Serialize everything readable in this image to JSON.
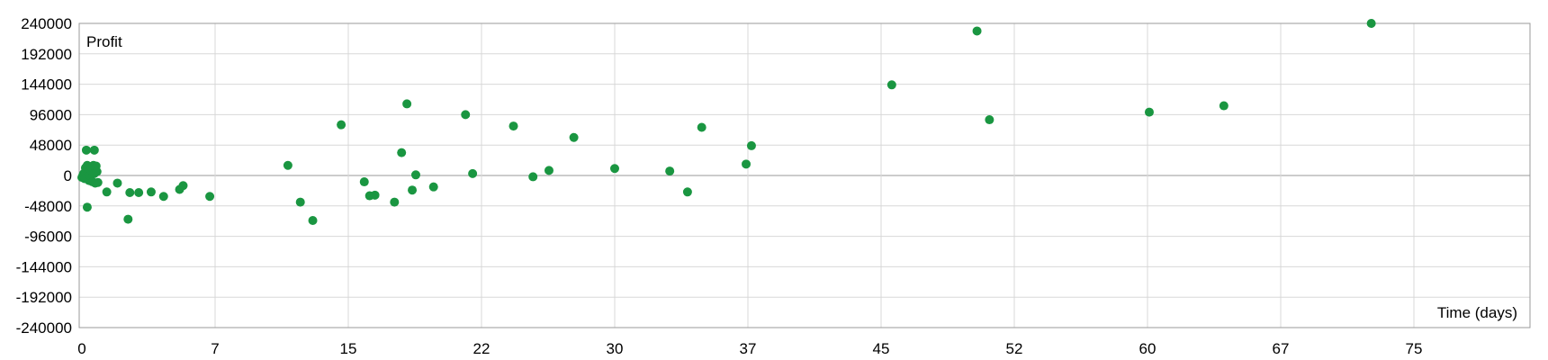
{
  "chart_data": {
    "type": "scatter",
    "title": "",
    "ylabel": "Profit",
    "xlabel": "Time (days)",
    "xlim": [
      0,
      75
    ],
    "ylim": [
      -240000,
      240000
    ],
    "x_ticks": [
      "0",
      "7",
      "15",
      "22",
      "30",
      "37",
      "45",
      "52",
      "60",
      "67",
      "75"
    ],
    "y_ticks": [
      "240000",
      "192000",
      "144000",
      "96000",
      "48000",
      "0",
      "-48000",
      "-96000",
      "-144000",
      "-192000",
      "-240000"
    ],
    "grid": true,
    "legend": "none",
    "marker_color": "#1a9641",
    "series": [
      {
        "points": [
          [
            0.0,
            -3000
          ],
          [
            0.05,
            0
          ],
          [
            0.1,
            3000
          ],
          [
            0.15,
            -5000
          ],
          [
            0.2,
            12000
          ],
          [
            0.25,
            40000
          ],
          [
            0.3,
            -50000
          ],
          [
            0.3,
            16000
          ],
          [
            0.35,
            5000
          ],
          [
            0.4,
            -8000
          ],
          [
            0.45,
            0
          ],
          [
            0.5,
            8000
          ],
          [
            0.55,
            13000
          ],
          [
            0.6,
            -10000
          ],
          [
            0.65,
            16000
          ],
          [
            0.7,
            40000
          ],
          [
            0.7,
            3000
          ],
          [
            0.75,
            -12000
          ],
          [
            0.8,
            15000
          ],
          [
            0.85,
            6000
          ],
          [
            0.9,
            -11000
          ],
          [
            1.4,
            -26000
          ],
          [
            2.0,
            -12000
          ],
          [
            2.6,
            -69000
          ],
          [
            2.7,
            -27000
          ],
          [
            3.2,
            -27000
          ],
          [
            3.9,
            -26000
          ],
          [
            4.6,
            -33000
          ],
          [
            5.5,
            -22000
          ],
          [
            5.7,
            -16000
          ],
          [
            7.2,
            -33000
          ],
          [
            11.6,
            16000
          ],
          [
            12.3,
            -42000
          ],
          [
            13.0,
            -71000
          ],
          [
            14.6,
            80000
          ],
          [
            15.9,
            -10000
          ],
          [
            16.2,
            -32000
          ],
          [
            16.5,
            -31000
          ],
          [
            17.6,
            -42000
          ],
          [
            18.0,
            36000
          ],
          [
            18.3,
            113000
          ],
          [
            18.6,
            -23000
          ],
          [
            18.8,
            1000
          ],
          [
            19.8,
            -18000
          ],
          [
            21.6,
            96000
          ],
          [
            22.0,
            3000
          ],
          [
            24.3,
            78000
          ],
          [
            25.4,
            -2000
          ],
          [
            26.3,
            8000
          ],
          [
            27.7,
            60000
          ],
          [
            30.0,
            11000
          ],
          [
            33.1,
            7000
          ],
          [
            34.1,
            -26000
          ],
          [
            34.9,
            76000
          ],
          [
            37.4,
            18000
          ],
          [
            37.7,
            47000
          ],
          [
            45.6,
            143000
          ],
          [
            50.4,
            228000
          ],
          [
            51.1,
            88000
          ],
          [
            60.1,
            100000
          ],
          [
            64.3,
            110000
          ],
          [
            72.6,
            240000
          ]
        ]
      }
    ]
  }
}
